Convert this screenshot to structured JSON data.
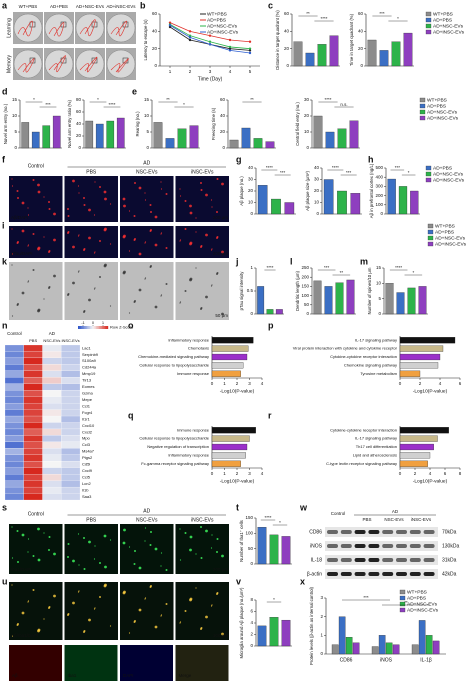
{
  "panel_labels": [
    "a",
    "b",
    "c",
    "d",
    "e",
    "f",
    "g",
    "h",
    "i",
    "j",
    "k",
    "l",
    "m",
    "n",
    "o",
    "p",
    "q",
    "r",
    "s",
    "t",
    "u",
    "v",
    "w",
    "x"
  ],
  "maze": {
    "groups": [
      "WT+PBS",
      "AD+PBS",
      "AD+NSC-EVs",
      "AD+iNSC-EVs"
    ],
    "rows": [
      "Learning",
      "Memory"
    ]
  },
  "images": {
    "f": {
      "groups": [
        "Control",
        "AD",
        "PBS",
        "NSC-EVs",
        "iNSC-EVs"
      ],
      "stain": "Aβ/DAPI",
      "scale": "200 μm"
    },
    "i": {
      "stain": "pTau/DAPI",
      "scale": "200 μm"
    },
    "k": {
      "scale": "50 μm"
    },
    "s": {
      "groups": [
        "Control",
        "AD",
        "PBS",
        "NSC-EVs",
        "iNSC-EVs"
      ],
      "stain": "Iba1/DAPI",
      "scale": "200 μm"
    },
    "u": {
      "stain": "Aβ/Iba1/DAPI",
      "scale": "100 μm",
      "insets": [
        "Aβ",
        "Iba1",
        "DAPI",
        "Merge"
      ]
    }
  },
  "western_blot": {
    "groups": [
      "Control",
      "AD",
      "PBS",
      "NSC-EVs",
      "iNSC-EVs"
    ],
    "proteins": [
      "CD86",
      "iNOS",
      "IL-18",
      "β-actin"
    ],
    "sizes": [
      "70kDa",
      "130kDa",
      "31kDa",
      "42kDa"
    ]
  },
  "chart_data": [
    {
      "type": "line",
      "ylabel": "Latency to escape (s)",
      "xlabel": "Time (Day)",
      "x": [
        1,
        2,
        3,
        4,
        5
      ],
      "xlim": [
        0.5,
        5.5
      ],
      "xticks": [
        1,
        2,
        3,
        4,
        5
      ],
      "ylim": [
        0,
        60
      ],
      "yticks": [
        0,
        20,
        40,
        60
      ],
      "legend": "top",
      "series": [
        {
          "name": "WT+PBS",
          "color": "#222222",
          "values": [
            45,
            30,
            25,
            20,
            18
          ]
        },
        {
          "name": "AD+PBS",
          "color": "#e0302a",
          "values": [
            50,
            40,
            35,
            30,
            28
          ]
        },
        {
          "name": "AD+NSC-EVs",
          "color": "#2db34a",
          "values": [
            48,
            35,
            28,
            22,
            20
          ]
        },
        {
          "name": "AD+iNSC-EVs",
          "color": "#2f5fd0",
          "values": [
            47,
            33,
            25,
            18,
            15
          ]
        }
      ]
    },
    {
      "type": "bar",
      "ylabel": "Distance in target quadrant (%)",
      "categories": [
        null,
        null,
        null,
        null
      ],
      "values": [
        28,
        15,
        25,
        35
      ],
      "colors": [
        "#8c8c8c",
        "#3b6fc4",
        "#2db34a",
        "#8e3fbf"
      ],
      "ylim": [
        0,
        60
      ],
      "yticks": [
        0,
        20,
        40,
        60
      ],
      "annotations": [
        "**",
        "****"
      ]
    },
    {
      "type": "bar",
      "ylabel": "Time in target quadrant (%)",
      "categories": [
        "WT+PBS",
        "AD+PBS",
        "AD+NSC-EVs",
        "AD+iNSC-EVs"
      ],
      "values": [
        30,
        18,
        28,
        38
      ],
      "colors": [
        "#8c8c8c",
        "#3b6fc4",
        "#2db34a",
        "#8e3fbf"
      ],
      "ylim": [
        0,
        60
      ],
      "yticks": [
        0,
        20,
        40,
        60
      ],
      "legend": "right",
      "annotations": [
        "***",
        "*"
      ]
    },
    {
      "type": "bar",
      "ylabel": "Novel arm entry (no.)",
      "categories": [
        null,
        null,
        null,
        null
      ],
      "values": [
        8,
        5,
        7,
        10
      ],
      "colors": [
        "#8c8c8c",
        "#3b6fc4",
        "#2db34a",
        "#8e3fbf"
      ],
      "ylim": [
        0,
        15
      ],
      "yticks": [
        0,
        5,
        10,
        15
      ],
      "annotations": [
        "*",
        "***"
      ]
    },
    {
      "type": "bar",
      "ylabel": "Novel arm entry ratio (%)",
      "categories": [
        null,
        null,
        null,
        null
      ],
      "values": [
        45,
        40,
        45,
        50
      ],
      "colors": [
        "#8c8c8c",
        "#3b6fc4",
        "#2db34a",
        "#8e3fbf"
      ],
      "ylim": [
        0,
        80
      ],
      "yticks": [
        0,
        20,
        40,
        60,
        80
      ],
      "annotations": [
        "*",
        "****"
      ]
    },
    {
      "type": "bar",
      "ylabel": "Rearing (no.)",
      "categories": [
        null,
        null,
        null,
        null
      ],
      "values": [
        8,
        3,
        6,
        7
      ],
      "colors": [
        "#8c8c8c",
        "#3b6fc4",
        "#2db34a",
        "#8e3fbf"
      ],
      "ylim": [
        0,
        15
      ],
      "yticks": [
        0,
        5,
        10,
        15
      ],
      "annotations": [
        "**",
        "*"
      ]
    },
    {
      "type": "bar",
      "ylabel": "Freezing time (s)",
      "categories": [
        null,
        null,
        null,
        null
      ],
      "values": [
        10,
        25,
        12,
        8
      ],
      "colors": [
        "#8c8c8c",
        "#3b6fc4",
        "#2db34a",
        "#8e3fbf"
      ],
      "ylim": [
        0,
        60
      ],
      "yticks": [
        0,
        20,
        40,
        60
      ],
      "annotations": [
        "**"
      ]
    },
    {
      "type": "bar",
      "ylabel": "Central field entry (no.)",
      "categories": [
        "WT+PBS",
        "AD+PBS",
        "AD+NSC-EVs",
        "AD+iNSC-EVs"
      ],
      "values": [
        20,
        10,
        12,
        17
      ],
      "colors": [
        "#8c8c8c",
        "#3b6fc4",
        "#2db34a",
        "#8e3fbf"
      ],
      "ylim": [
        0,
        30
      ],
      "yticks": [
        0,
        10,
        20,
        30
      ],
      "legend": "right",
      "annotations": [
        "****",
        "n.s."
      ]
    },
    {
      "type": "bar",
      "ylabel": "Aβ plaque (no.)",
      "categories": [
        null,
        null,
        null
      ],
      "values": [
        25,
        13,
        10
      ],
      "colors": [
        "#3b6fc4",
        "#2db34a",
        "#8e3fbf"
      ],
      "ylim": [
        0,
        40
      ],
      "yticks": [
        0,
        10,
        20,
        30,
        40
      ],
      "annotations": [
        "****",
        "***"
      ]
    },
    {
      "type": "bar",
      "ylabel": "Aβ plaque size (μm²)",
      "categories": [
        null,
        null,
        null
      ],
      "values": [
        30,
        20,
        18
      ],
      "colors": [
        "#3b6fc4",
        "#2db34a",
        "#8e3fbf"
      ],
      "ylim": [
        0,
        40
      ],
      "yticks": [
        0,
        10,
        20,
        30,
        40
      ],
      "annotations": [
        "****",
        "***"
      ]
    },
    {
      "type": "bar",
      "ylabel": "Aβ in prefrontal cortex (ng/L)",
      "categories": [
        "AD+PBS",
        "AD+NSC-EVs",
        "AD+iNSC-EVs"
      ],
      "values": [
        380,
        300,
        250
      ],
      "colors": [
        "#3b6fc4",
        "#2db34a",
        "#8e3fbf"
      ],
      "ylim": [
        0,
        500
      ],
      "yticks": [
        0,
        100,
        200,
        300,
        400,
        500
      ],
      "legend": "right",
      "annotations": [
        "***",
        "*"
      ]
    },
    {
      "type": "bar",
      "ylabel": "pTau signal intensity",
      "categories": [
        null,
        null,
        null
      ],
      "values": [
        0.6,
        0.1,
        0.1
      ],
      "colors": [
        "#3b6fc4",
        "#2db34a",
        "#8e3fbf"
      ],
      "ylim": [
        0,
        1
      ],
      "yticks": [
        0,
        0.5,
        1
      ],
      "annotations": [
        "****"
      ]
    },
    {
      "type": "bar",
      "ylabel": "Dendritic length (μm)",
      "categories": [
        null,
        null,
        null,
        null
      ],
      "values": [
        180,
        150,
        170,
        185
      ],
      "colors": [
        "#8c8c8c",
        "#3b6fc4",
        "#2db34a",
        "#8e3fbf"
      ],
      "ylim": [
        0,
        250
      ],
      "yticks": [
        0,
        50,
        100,
        150,
        200,
        250
      ],
      "annotations": [
        "***",
        "**"
      ]
    },
    {
      "type": "bar",
      "ylabel": "Number of spines/10 μm",
      "categories": [
        "WT+PBS",
        "AD+PBS",
        "AD+NSC-EVs",
        "AD+iNSC-EVs"
      ],
      "values": [
        10,
        7,
        8.5,
        9
      ],
      "colors": [
        "#8c8c8c",
        "#3b6fc4",
        "#2db34a",
        "#8e3fbf"
      ],
      "ylim": [
        0,
        15
      ],
      "yticks": [
        0,
        5,
        10,
        15
      ],
      "legend": "right",
      "annotations": [
        "****",
        "*"
      ]
    },
    {
      "type": "heatmap",
      "columns_top": [
        "Control",
        "AD"
      ],
      "columns": [
        null,
        "PBS",
        "NSC-EVs",
        "iNSC-EVs"
      ],
      "colorbar_label": "Row Z-Score",
      "zlim": [
        -1.5,
        1.5
      ],
      "zticks": [
        -1,
        0,
        1
      ],
      "rows": [
        "Lac1",
        "Serpinb9",
        "S100a9",
        "Cd244a",
        "Mmp19",
        "Tlr13",
        "Eomes",
        "Gzma",
        "Mepe",
        "Ccl1",
        "Fcgr4",
        "Il1r1",
        "Cxcl10",
        "Cxcl2",
        "Mpo",
        "Ccl3",
        "Ms4a7",
        "Ptgs2",
        "Cd5l",
        "Cxcl9",
        "Ccl5",
        "Lcn2",
        "Il1b",
        "Saa3"
      ],
      "values": [
        [
          -0.9,
          1.4,
          -0.1,
          -0.4
        ],
        [
          -1.0,
          1.3,
          0.1,
          -0.4
        ],
        [
          -0.8,
          1.5,
          -0.3,
          -0.4
        ],
        [
          -1.1,
          1.2,
          0.2,
          -0.3
        ],
        [
          -0.7,
          1.4,
          -0.2,
          -0.5
        ],
        [
          -1.2,
          1.1,
          0.3,
          -0.2
        ],
        [
          -0.6,
          1.5,
          -0.4,
          -0.5
        ],
        [
          -0.9,
          1.2,
          0.0,
          -0.3
        ],
        [
          -1.0,
          1.4,
          -0.1,
          -0.3
        ],
        [
          -0.8,
          1.3,
          -0.2,
          -0.3
        ],
        [
          -1.1,
          1.3,
          0.1,
          -0.3
        ],
        [
          -0.7,
          1.2,
          0.0,
          -0.5
        ],
        [
          -0.9,
          1.5,
          -0.3,
          -0.3
        ],
        [
          -1.0,
          1.1,
          0.2,
          -0.3
        ],
        [
          -0.8,
          1.4,
          -0.4,
          -0.2
        ],
        [
          -1.2,
          1.2,
          0.1,
          -0.1
        ],
        [
          -0.6,
          1.3,
          -0.2,
          -0.5
        ],
        [
          -0.9,
          1.4,
          -0.1,
          -0.4
        ],
        [
          -1.0,
          1.2,
          0.0,
          -0.2
        ],
        [
          -0.8,
          1.5,
          -0.3,
          -0.4
        ],
        [
          -1.1,
          1.3,
          0.2,
          -0.4
        ],
        [
          -0.7,
          1.4,
          -0.2,
          -0.5
        ],
        [
          -0.9,
          1.3,
          -0.1,
          -0.3
        ],
        [
          -1.0,
          1.5,
          -0.2,
          -0.3
        ]
      ]
    },
    {
      "type": "barh",
      "xlabel": "-Log10(P-value)",
      "categories": [
        "Inflammatory response",
        "Chemotaxis",
        "Chemokine-mediated signaling pathway",
        "Cellular response to lipopolysaccharide",
        "Immune response"
      ],
      "values": [
        3.3,
        2.9,
        2.8,
        2.5,
        2.3
      ],
      "colors": [
        "#111111",
        "#c8b98a",
        "#9b30c9",
        "#d0d0d0",
        "#f0a040"
      ],
      "xlim": [
        0,
        4
      ],
      "xticks": [
        0,
        1,
        2,
        3,
        4
      ]
    },
    {
      "type": "barh",
      "xlabel": "-Log10(P-value)",
      "categories": [
        "IL-17 signaling pathway",
        "Viral protein interaction with cytokine and cytokine receptor",
        "Cytokine-cytokine receptor interaction",
        "Chemokine signaling pathway",
        "Tyrosine metabolism"
      ],
      "values": [
        5.5,
        4.3,
        4.0,
        3.8,
        2.0
      ],
      "colors": [
        "#111111",
        "#c8b98a",
        "#9b30c9",
        "#d0d0d0",
        "#f0a040"
      ],
      "xlim": [
        0,
        6
      ],
      "xticks": [
        0,
        2,
        4,
        6
      ]
    },
    {
      "type": "barh",
      "xlabel": "-Log10(P-value)",
      "categories": [
        "Immune response",
        "Cellular response to lipopolysaccharide",
        "Negative regulation of transcription",
        "Inflammatory response",
        "Fc-gamma receptor signaling pathway"
      ],
      "values": [
        3.5,
        3.0,
        2.8,
        2.7,
        2.3
      ],
      "colors": [
        "#111111",
        "#c8b98a",
        "#9b30c9",
        "#d0d0d0",
        "#f0a040"
      ],
      "xlim": [
        0,
        4
      ],
      "xticks": [
        0,
        1,
        2,
        3,
        4
      ]
    },
    {
      "type": "barh",
      "xlabel": "-Log10(P-value)",
      "categories": [
        "Cytokine-cytokine receptor interaction",
        "IL-17 signaling pathway",
        "Th17 cell differentiation",
        "Lipid and atherosclerosis",
        "C-type lectin receptor signaling pathway"
      ],
      "values": [
        6.5,
        5.0,
        4.5,
        4.0,
        3.7
      ],
      "colors": [
        "#111111",
        "#c8b98a",
        "#9b30c9",
        "#d0d0d0",
        "#f0a040"
      ],
      "xlim": [
        0,
        8
      ],
      "xticks": [
        0,
        2,
        4,
        6,
        8
      ]
    },
    {
      "type": "bar",
      "ylabel": "Number of Iba1⁺ cells",
      "categories": [
        null,
        null,
        null
      ],
      "values": [
        120,
        95,
        90
      ],
      "colors": [
        "#3b6fc4",
        "#2db34a",
        "#8e3fbf"
      ],
      "ylim": [
        0,
        150
      ],
      "yticks": [
        0,
        50,
        100,
        150
      ],
      "annotations": [
        "****",
        "*"
      ]
    },
    {
      "type": "bar",
      "ylabel": "Microglia around Aβ plaque (no./μm²)",
      "categories": [
        null,
        null,
        null
      ],
      "values": [
        3.5,
        5,
        4.5
      ],
      "colors": [
        "#3b6fc4",
        "#2db34a",
        "#8e3fbf"
      ],
      "ylim": [
        0,
        8
      ],
      "yticks": [
        0,
        2,
        4,
        6,
        8
      ],
      "annotations": [
        "*"
      ]
    },
    {
      "type": "bar",
      "ylabel": "Protein levels (β-actin as internal control)",
      "categories": [
        "CD86",
        "iNOS",
        "IL-1β"
      ],
      "ylim": [
        0,
        3
      ],
      "yticks": [
        0,
        1,
        2,
        3
      ],
      "legend": "top right",
      "annotations": [
        "***",
        "**"
      ],
      "series": [
        {
          "name": "WT+PBS",
          "color": "#8c8c8c",
          "values": [
            0.5,
            0.4,
            0.5
          ]
        },
        {
          "name": "AD+PBS",
          "color": "#3b6fc4",
          "values": [
            2.0,
            1.0,
            1.8
          ]
        },
        {
          "name": "AD+NSC-EVs",
          "color": "#2db34a",
          "values": [
            0.9,
            0.6,
            1.0
          ]
        },
        {
          "name": "AD+iNSC-EVs",
          "color": "#8e3fbf",
          "values": [
            0.6,
            0.5,
            0.7
          ]
        }
      ]
    }
  ]
}
